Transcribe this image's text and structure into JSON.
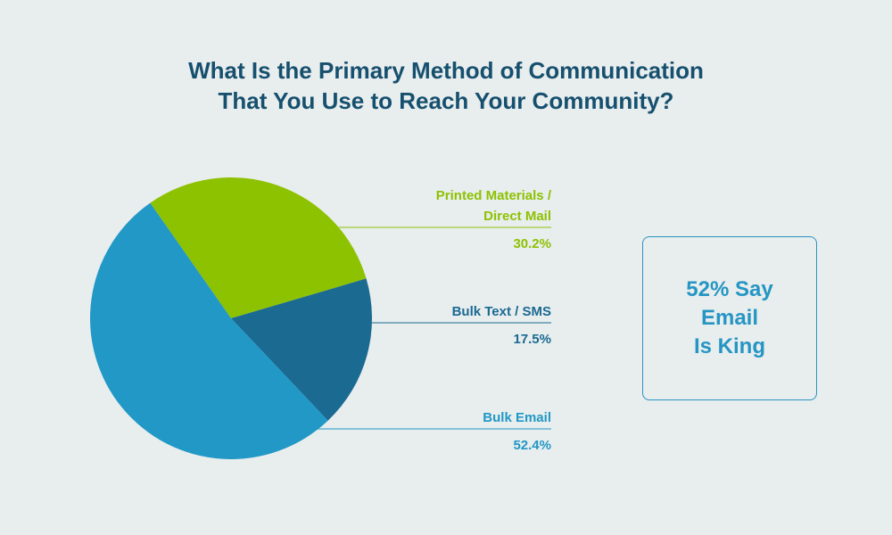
{
  "title": {
    "line1": "What Is the Primary Method of Communication",
    "line2": "That You Use to Reach Your Community?"
  },
  "callout": {
    "line1": "52% Say",
    "line2": "Email",
    "line3": "Is King"
  },
  "colors": {
    "printed": "#8dc200",
    "sms": "#1a6a92",
    "email": "#2198c6",
    "title": "#16506e",
    "background": "#e8edee"
  },
  "chart_data": {
    "type": "pie",
    "title": "What Is the Primary Method of Communication That You Use to Reach Your Community?",
    "start_angle_deg": -35,
    "direction": "clockwise",
    "slices": [
      {
        "label_lines": [
          "Printed Materials /",
          "Direct Mail"
        ],
        "label": "Printed Materials / Direct Mail",
        "value": 30.2,
        "value_label": "30.2%",
        "color": "#8dc200"
      },
      {
        "label_lines": [
          "Bulk Text / SMS"
        ],
        "label": "Bulk Text / SMS",
        "value": 17.5,
        "value_label": "17.5%",
        "color": "#1a6a92"
      },
      {
        "label_lines": [
          "Bulk Email"
        ],
        "label": "Bulk Email",
        "value": 52.4,
        "value_label": "52.4%",
        "color": "#2198c6"
      }
    ]
  }
}
